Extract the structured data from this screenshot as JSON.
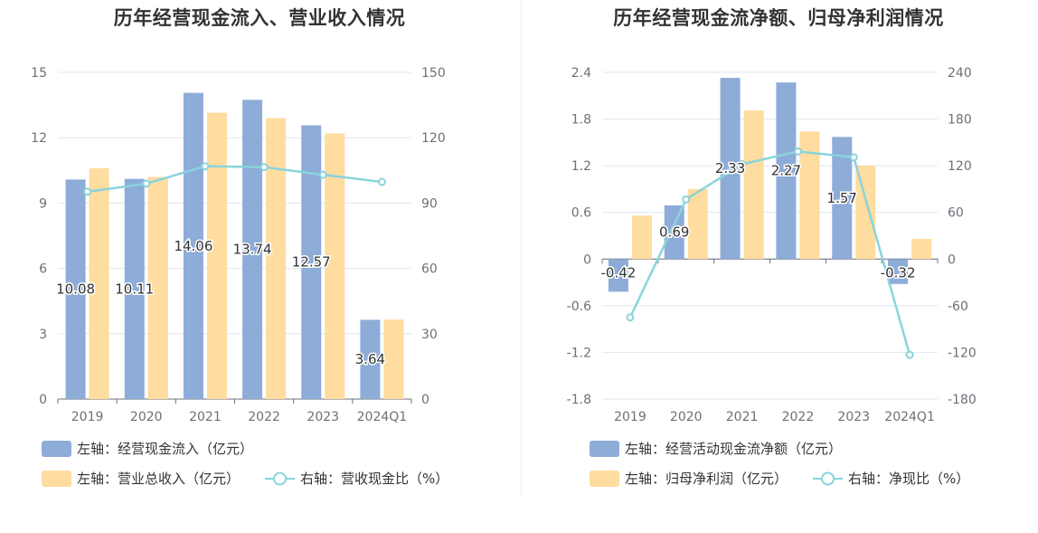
{
  "chart_data": [
    {
      "type": "bar",
      "title": "历年经营现金流入、营业收入情况",
      "categories": [
        "2019",
        "2020",
        "2021",
        "2022",
        "2023",
        "2024Q1"
      ],
      "left_axis": {
        "ticks": [
          "0",
          "3",
          "6",
          "9",
          "12",
          "15"
        ],
        "range": [
          0,
          15
        ]
      },
      "right_axis": {
        "ticks": [
          "0",
          "30",
          "60",
          "90",
          "120",
          "150"
        ],
        "range": [
          0,
          150
        ]
      },
      "series": [
        {
          "name": "左轴：经营现金流入（亿元）",
          "kind": "bar",
          "axis": "left",
          "color": "#8eacd8",
          "values": [
            10.08,
            10.11,
            14.06,
            13.74,
            12.57,
            3.64
          ],
          "labels": [
            "10.08",
            "10.11",
            "14.06",
            "13.74",
            "12.57",
            "3.64"
          ]
        },
        {
          "name": "左轴：营业总收入（亿元）",
          "kind": "bar",
          "axis": "left",
          "color": "#ffdc9f",
          "values": [
            10.6,
            10.2,
            13.15,
            12.9,
            12.2,
            3.65
          ]
        },
        {
          "name": "右轴：营收现金比（%）",
          "kind": "line",
          "axis": "right",
          "color": "#89d4dc",
          "values": [
            95.2,
            98.9,
            106.9,
            106.5,
            103.0,
            99.7
          ]
        }
      ]
    },
    {
      "type": "bar",
      "title": "历年经营现金流净额、归母净利润情况",
      "categories": [
        "2019",
        "2020",
        "2021",
        "2022",
        "2023",
        "2024Q1"
      ],
      "left_axis": {
        "ticks": [
          "-1.8",
          "-1.2",
          "-0.6",
          "0",
          "0.6",
          "1.2",
          "1.8",
          "2.4"
        ],
        "range": [
          -1.8,
          2.4
        ]
      },
      "right_axis": {
        "ticks": [
          "-180",
          "-120",
          "-60",
          "0",
          "60",
          "120",
          "180",
          "240"
        ],
        "range": [
          -180,
          240
        ]
      },
      "series": [
        {
          "name": "左轴：经营活动现金流净额（亿元）",
          "kind": "bar",
          "axis": "left",
          "color": "#8eacd8",
          "values": [
            -0.42,
            0.69,
            2.33,
            2.27,
            1.57,
            -0.32
          ],
          "labels": [
            "-0.42",
            "0.69",
            "2.33",
            "2.27",
            "1.57",
            "-0.32"
          ]
        },
        {
          "name": "左轴：归母净利润（亿元）",
          "kind": "bar",
          "axis": "left",
          "color": "#ffdc9f",
          "values": [
            0.56,
            0.9,
            1.91,
            1.64,
            1.2,
            0.26
          ]
        },
        {
          "name": "右轴：净现比（%）",
          "kind": "line",
          "axis": "right",
          "color": "#89d4dc",
          "values": [
            -75,
            76.7,
            121.9,
            138.4,
            130.8,
            -123.1
          ]
        }
      ]
    }
  ]
}
